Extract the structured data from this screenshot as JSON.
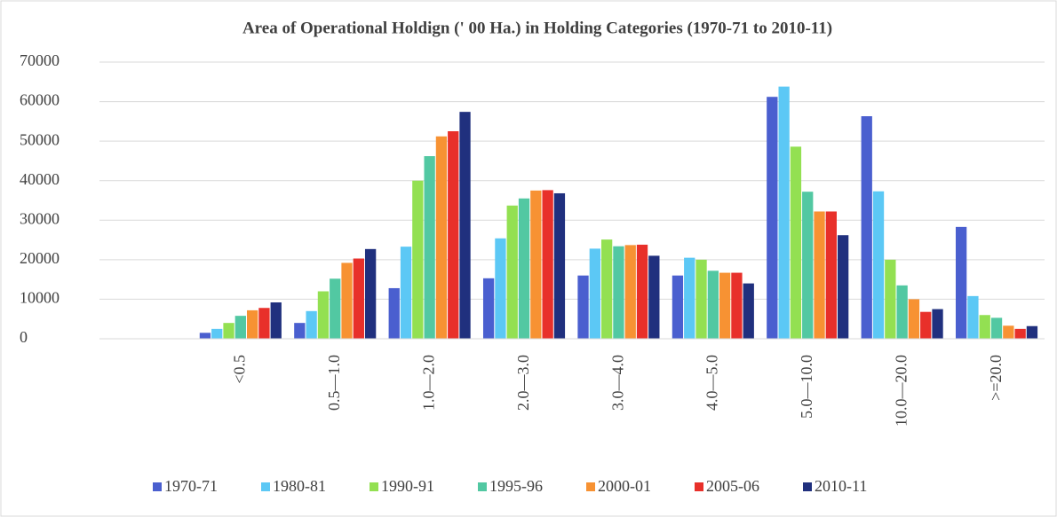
{
  "chart_data": {
    "type": "bar",
    "title": "Area of Operational Holdign (' 00 Ha.) in Holding Categories (1970-71 to 2010-11)",
    "categories": [
      null,
      "<0.5",
      "0.5—1.0",
      "1.0—2.0",
      "2.0—3.0",
      "3.0—4.0",
      "4.0—5.0",
      "5.0—10.0",
      "10.0—20.0",
      ">=20.0"
    ],
    "series": [
      {
        "name": "1970-71",
        "color": "#4a5fcf",
        "values": [
          null,
          1500,
          4000,
          12800,
          15300,
          16000,
          16000,
          61200,
          56300,
          28300
        ]
      },
      {
        "name": "1980-81",
        "color": "#5cc8f5",
        "values": [
          null,
          2500,
          7000,
          23300,
          25400,
          22800,
          20500,
          63800,
          37300,
          10800
        ]
      },
      {
        "name": "1990-91",
        "color": "#93e052",
        "values": [
          null,
          4000,
          12000,
          40000,
          33700,
          25100,
          20000,
          48600,
          20000,
          6000
        ]
      },
      {
        "name": "1995-96",
        "color": "#52c8a2",
        "values": [
          null,
          5800,
          15200,
          46200,
          35500,
          23400,
          17200,
          37200,
          13500,
          5300
        ]
      },
      {
        "name": "2000-01",
        "color": "#f79233",
        "values": [
          null,
          7200,
          19200,
          51200,
          37500,
          23700,
          16700,
          32200,
          10000,
          3300
        ]
      },
      {
        "name": "2005-06",
        "color": "#e8302a",
        "values": [
          null,
          7800,
          20300,
          52500,
          37600,
          23800,
          16700,
          32200,
          6800,
          2500
        ]
      },
      {
        "name": "2010-11",
        "color": "#20307e",
        "values": [
          null,
          9200,
          22700,
          57400,
          36800,
          21000,
          14000,
          26200,
          7500,
          3200
        ]
      }
    ],
    "ylim": [
      0,
      70000
    ],
    "yticks": [
      0,
      10000,
      20000,
      30000,
      40000,
      50000,
      60000,
      70000
    ],
    "grid": true,
    "legend": "bottom"
  }
}
